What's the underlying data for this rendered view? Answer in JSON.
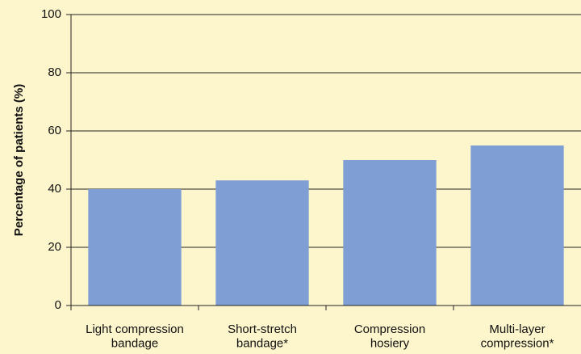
{
  "chart_data": {
    "type": "bar",
    "y_label": "Percentage of patients (%)",
    "categories": [
      "Light compression\nbandage",
      "Short-stretch\nbandage*",
      "Compression\nhosiery",
      "Multi-layer\ncompression*"
    ],
    "values": [
      40,
      43,
      50,
      55
    ],
    "color": "#7f9fd4",
    "ylim": [
      0,
      100
    ],
    "yticks": [
      0,
      20,
      40,
      60,
      80,
      100
    ],
    "grid": true
  }
}
